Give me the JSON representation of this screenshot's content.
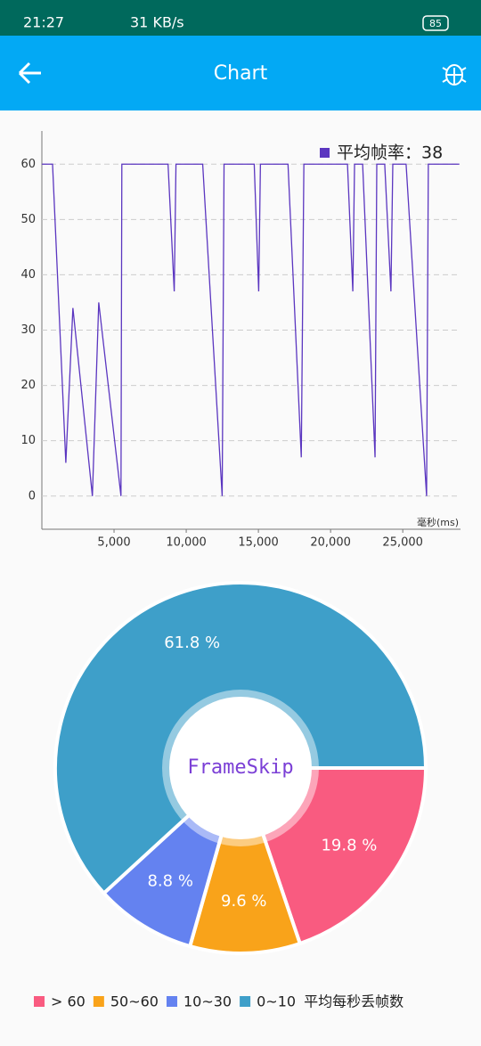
{
  "status_bar": {
    "time": "21:27",
    "speed": "31 KB/s",
    "battery": "85"
  },
  "app_bar": {
    "title": "Chart"
  },
  "chart_data": [
    {
      "type": "line",
      "legend": "平均帧率：38",
      "x_label": "毫秒(ms)",
      "x": [
        0,
        740,
        1660,
        2150,
        3500,
        3940,
        5480,
        5540,
        8740,
        9170,
        9290,
        11140,
        12490,
        12620,
        14710,
        15020,
        15140,
        17050,
        17970,
        18150,
        21170,
        21540,
        21660,
        22220,
        23080,
        23200,
        23750,
        24180,
        24310,
        25230,
        26650,
        26770,
        28920
      ],
      "series": [
        {
          "name": "平均帧率",
          "color": "#5b36c0",
          "values": [
            60,
            60,
            6,
            34,
            0,
            35,
            0,
            60,
            60,
            37,
            60,
            60,
            0,
            60,
            60,
            37,
            60,
            60,
            7,
            60,
            60,
            37,
            60,
            60,
            7,
            60,
            60,
            37,
            60,
            60,
            0,
            60,
            60
          ]
        }
      ],
      "xlim": [
        0,
        29000
      ],
      "xticks": [
        {
          "value": 5000,
          "label": "5,000"
        },
        {
          "value": 10000,
          "label": "10,000"
        },
        {
          "value": 15000,
          "label": "15,000"
        },
        {
          "value": 20000,
          "label": "20,000"
        },
        {
          "value": 25000,
          "label": "25,000"
        }
      ],
      "ylim": [
        -6,
        66
      ],
      "yticks": [
        0,
        10,
        20,
        30,
        40,
        50,
        60
      ],
      "grid": true
    },
    {
      "type": "pie",
      "center_text": "FrameSkip",
      "description": "平均每秒丢帧数",
      "categories": [
        "> 60",
        "50~60",
        "10~30",
        "0~10"
      ],
      "values": [
        19.8,
        9.6,
        8.8,
        61.8
      ],
      "value_labels": [
        "19.8 %",
        "9.6 %",
        "8.8 %",
        "61.8 %"
      ],
      "colors": [
        "#f95b80",
        "#f9a31a",
        "#6482f0",
        "#3e9fc9"
      ]
    }
  ]
}
